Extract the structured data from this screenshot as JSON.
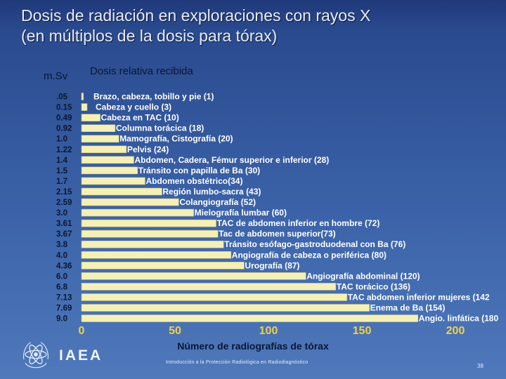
{
  "title_line1": "Dosis de radiación en exploraciones con rayos X",
  "title_line2": "(en múltiplos de la dosis para tórax)",
  "footer": "Introducción a la Protección Radiológica en Radiodiagnóstico",
  "page_number": "38",
  "logo_text": "IAEA",
  "colors": {
    "bar": "#f5f0b8",
    "bar_edge": "#c8bf6a",
    "x_tick": "#f2d046",
    "dark_text": "#0b1633"
  },
  "chart_data": {
    "type": "bar",
    "orientation": "horizontal",
    "title": "Dosis relativa recibida",
    "ylabel": "m.Sv",
    "xlabel": "Número de radiografías de tórax",
    "xlim": [
      0,
      200
    ],
    "xticks": [
      "0",
      "50",
      "100",
      "150",
      "200"
    ],
    "grid": false,
    "categories": [
      ".05",
      "0.15",
      "0.49",
      "0.92",
      "1.0",
      "1.22",
      "1.4",
      "1.5",
      "1.7",
      "2.15",
      "2.59",
      "3.0",
      "3.61",
      "3.67",
      "3.8",
      "4.0",
      "4.36",
      "6.0",
      "6.8",
      "7.13",
      "7.69",
      "9.0"
    ],
    "labels": [
      "Brazo, cabeza, tobillo y pie (1)",
      "Cabeza y cuello (3)",
      "Cabeza en TAC (10)",
      "Columna torácica (18)",
      "Mamografía, Cistografía (20)",
      "Pelvis (24)",
      "Abdomen, Cadera, Fémur superior e inferior (28)",
      "Tránsito con papilla de Ba (30)",
      "Abdomen obstétrico(34)",
      "Región lumbo-sacra (43)",
      "Colangiografía (52)",
      "Mielografía lumbar (60)",
      "TAC de abdomen inferior en hombre (72)",
      "Tac de abdomen superior(73)",
      "Tránsito esófago-gastroduodenal con Ba (76)",
      "Angiografía de cabeza o periférica (80)",
      "Urografía (87)",
      "Angiografía abdominal (120)",
      "TAC torácico (136)",
      "TAC abdomen inferior mujeres (142",
      "Enema de Ba (154)",
      "Angio. linfática (180"
    ],
    "values": [
      1,
      3,
      10,
      18,
      20,
      24,
      28,
      30,
      34,
      43,
      52,
      60,
      72,
      73,
      76,
      80,
      87,
      120,
      136,
      142,
      154,
      180
    ]
  }
}
